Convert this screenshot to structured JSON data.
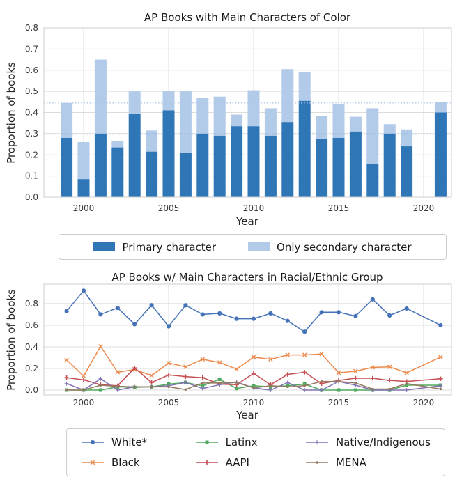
{
  "figure": {
    "background": "#ffffff"
  },
  "colors": {
    "grid": "#dcdcdc",
    "spine": "#cccccc",
    "title_text": "#1a1a1a",
    "tick_text": "#3a3a3a",
    "primary_bar": "#2e76b6",
    "secondary_bar": "#b2cbe9"
  },
  "chart_data": [
    {
      "type": "bar",
      "stacked": true,
      "title": "AP Books with Main Characters of Color",
      "xlabel": "Year",
      "ylabel": "Proportion of books",
      "ylim": [
        0.0,
        0.8
      ],
      "y_ticks": [
        0.0,
        0.1,
        0.2,
        0.3,
        0.4,
        0.5,
        0.6,
        0.7,
        0.8
      ],
      "x_ticks": [
        2000,
        2005,
        2010,
        2015,
        2020
      ],
      "grid": true,
      "legend_position": "below",
      "years": [
        1999,
        2000,
        2001,
        2002,
        2003,
        2004,
        2005,
        2006,
        2007,
        2008,
        2009,
        2010,
        2011,
        2012,
        2013,
        2014,
        2015,
        2016,
        2017,
        2018,
        2019,
        2021
      ],
      "series": [
        {
          "name": "Primary character",
          "color": "#2e76b6",
          "values": [
            0.28,
            0.085,
            0.3,
            0.235,
            0.395,
            0.215,
            0.41,
            0.21,
            0.3,
            0.29,
            0.335,
            0.335,
            0.29,
            0.355,
            0.455,
            0.275,
            0.28,
            0.31,
            0.155,
            0.3,
            0.24,
            0.4
          ]
        },
        {
          "name": "Only secondary character",
          "color": "#b2cbe9",
          "values": [
            0.165,
            0.175,
            0.35,
            0.03,
            0.105,
            0.1,
            0.09,
            0.29,
            0.17,
            0.185,
            0.055,
            0.17,
            0.13,
            0.25,
            0.135,
            0.11,
            0.16,
            0.07,
            0.265,
            0.045,
            0.08,
            0.05
          ]
        }
      ],
      "reference_lines": [
        {
          "y": 0.445,
          "color": "#aec7e8",
          "style": "dotted"
        },
        {
          "y": 0.298,
          "color": "#2e76b6",
          "style": "dotted"
        }
      ]
    },
    {
      "type": "line",
      "title": "AP Books w/ Main Characters in Racial/Ethnic Group",
      "xlabel": "Year",
      "ylabel": "Proportion of books",
      "ylim": [
        -0.045,
        0.98
      ],
      "y_ticks": [
        0.0,
        0.2,
        0.4,
        0.6,
        0.8
      ],
      "x_ticks": [
        2000,
        2005,
        2010,
        2015,
        2020
      ],
      "grid": true,
      "legend_position": "below",
      "years": [
        1999,
        2000,
        2001,
        2002,
        2003,
        2004,
        2005,
        2006,
        2007,
        2008,
        2009,
        2010,
        2011,
        2012,
        2013,
        2014,
        2015,
        2016,
        2017,
        2018,
        2019,
        2021
      ],
      "series": [
        {
          "name": "White*",
          "color": "#4673b8",
          "marker": "circle",
          "values": [
            0.73,
            0.92,
            0.7,
            0.76,
            0.61,
            0.785,
            0.59,
            0.785,
            0.7,
            0.71,
            0.66,
            0.66,
            0.71,
            0.64,
            0.54,
            0.72,
            0.72,
            0.685,
            0.84,
            0.69,
            0.755,
            0.6
          ]
        },
        {
          "name": "Black",
          "color": "#ec8a4c",
          "marker": "x",
          "values": [
            0.28,
            0.13,
            0.405,
            0.165,
            0.19,
            0.135,
            0.25,
            0.215,
            0.285,
            0.255,
            0.195,
            0.305,
            0.285,
            0.325,
            0.325,
            0.335,
            0.16,
            0.175,
            0.21,
            0.215,
            0.16,
            0.305
          ]
        },
        {
          "name": "Latinx",
          "color": "#4fa85e",
          "marker": "square",
          "values": [
            0.0,
            0.0,
            0.0,
            0.03,
            0.025,
            0.03,
            0.055,
            0.07,
            0.04,
            0.1,
            0.015,
            0.04,
            0.03,
            0.04,
            0.055,
            0.0,
            0.0,
            0.0,
            0.0,
            0.0,
            0.045,
            0.045
          ]
        },
        {
          "name": "AAPI",
          "color": "#c44e52",
          "marker": "plus",
          "values": [
            0.115,
            0.095,
            0.05,
            0.04,
            0.205,
            0.07,
            0.14,
            0.125,
            0.115,
            0.055,
            0.05,
            0.155,
            0.05,
            0.145,
            0.165,
            0.06,
            0.09,
            0.11,
            0.11,
            0.09,
            0.08,
            0.105
          ]
        },
        {
          "name": "Native/Indigenous",
          "color": "#8172b3",
          "marker": "plus-thin",
          "values": [
            0.06,
            0.0,
            0.105,
            0.0,
            0.03,
            0.03,
            0.04,
            0.07,
            0.015,
            0.05,
            0.075,
            0.02,
            0.0,
            0.07,
            0.0,
            0.0,
            0.08,
            0.045,
            0.0,
            0.0,
            0.0,
            0.04
          ]
        },
        {
          "name": "MENA",
          "color": "#94785f",
          "marker": "dot",
          "values": [
            0.0,
            0.0,
            0.045,
            0.035,
            0.03,
            0.03,
            0.03,
            0.005,
            0.065,
            0.065,
            0.07,
            0.02,
            0.04,
            0.03,
            0.04,
            0.08,
            0.08,
            0.065,
            0.01,
            0.01,
            0.06,
            0.01
          ]
        }
      ]
    }
  ]
}
